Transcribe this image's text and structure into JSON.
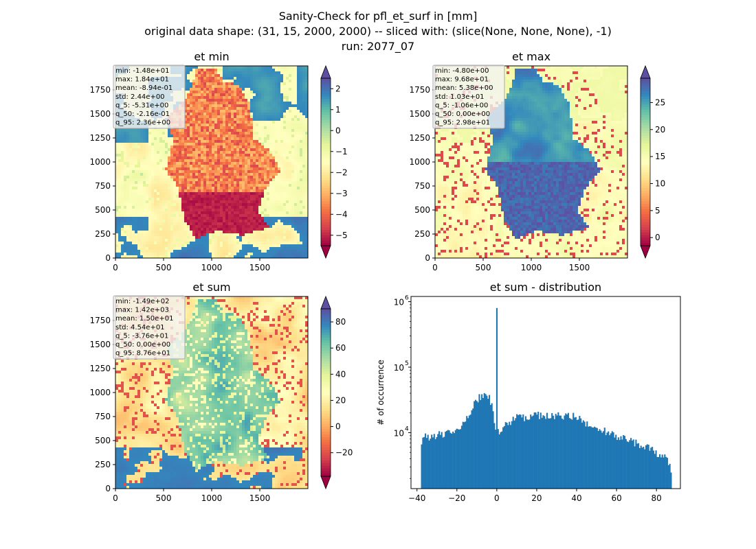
{
  "figure": {
    "title_lines": [
      "Sanity-Check for pfl_et_surf in [mm]",
      "original data shape: (31, 15, 2000, 2000) -- sliced with: (slice(None, None, None), -1)",
      "run: 2077_07"
    ]
  },
  "chart_data": [
    {
      "type": "heatmap",
      "title": "et min",
      "xlim": [
        0,
        2000
      ],
      "ylim": [
        0,
        2000
      ],
      "xticks": [
        "0",
        "500",
        "1000",
        "1500"
      ],
      "yticks": [
        "0",
        "250",
        "500",
        "750",
        "1000",
        "1250",
        "1500",
        "1750"
      ],
      "colormap": "Spectral",
      "colorbar": {
        "range": [
          -5.5,
          2.5
        ],
        "extend": "both",
        "ticks": [
          -5,
          -4,
          -3,
          -2,
          -1,
          0,
          1,
          2
        ],
        "tick_labels": [
          "−5",
          "−4",
          "−3",
          "−2",
          "−1",
          "0",
          "1",
          "2"
        ]
      },
      "stats": [
        "min: -1.48e+01",
        "max: 1.84e+01",
        "mean: -8.94e-01",
        "std: 2.44e+00",
        "q_5: -5.31e+00",
        "q_50: -2.16e-01",
        "q_95: 2.36e+00"
      ]
    },
    {
      "type": "heatmap",
      "title": "et max",
      "xlim": [
        0,
        2000
      ],
      "ylim": [
        0,
        2000
      ],
      "xticks": [
        "0",
        "500",
        "1000",
        "1500"
      ],
      "yticks": [
        "0",
        "250",
        "500",
        "750",
        "1000",
        "1250",
        "1500",
        "1750"
      ],
      "colormap": "Spectral",
      "colorbar": {
        "range": [
          -1.5,
          29.5
        ],
        "extend": "both",
        "ticks": [
          0,
          5,
          10,
          15,
          20,
          25
        ],
        "tick_labels": [
          "0",
          "5",
          "10",
          "15",
          "20",
          "25"
        ]
      },
      "stats": [
        "min: -4.80e+00",
        "max: 9.68e+01",
        "mean: 5.38e+00",
        "std: 1.03e+01",
        "q_5: -1.06e+00",
        "q_50: 0.00e+00",
        "q_95: 2.98e+01"
      ]
    },
    {
      "type": "heatmap",
      "title": "et sum",
      "xlim": [
        0,
        2000
      ],
      "ylim": [
        0,
        2000
      ],
      "xticks": [
        "0",
        "500",
        "1000",
        "1500"
      ],
      "yticks": [
        "0",
        "250",
        "500",
        "750",
        "1000",
        "1250",
        "1500",
        "1750"
      ],
      "colormap": "Spectral",
      "colorbar": {
        "range": [
          -38,
          90
        ],
        "extend": "both",
        "ticks": [
          -20,
          0,
          20,
          40,
          60,
          80
        ],
        "tick_labels": [
          "−20",
          "0",
          "20",
          "40",
          "60",
          "80"
        ]
      },
      "stats": [
        "min: -1.49e+02",
        "max: 1.42e+03",
        "mean: 1.50e+01",
        "std: 4.54e+01",
        "q_5: -3.76e+01",
        "q_50: 0.00e+00",
        "q_95: 8.76e+01"
      ]
    },
    {
      "type": "bar",
      "title": "et sum - distribution",
      "ylabel": "# of occurrence",
      "yscale": "log",
      "xlim": [
        -43,
        92
      ],
      "ylim": [
        1400,
        1200000
      ],
      "xticks": [
        -40,
        -20,
        0,
        20,
        40,
        60,
        80
      ],
      "xtick_labels": [
        "−40",
        "−20",
        "0",
        "20",
        "40",
        "60",
        "80"
      ],
      "color": "#1f77b4",
      "bins": {
        "start": -38,
        "end": 87.6,
        "count": 200
      },
      "spike": {
        "x": 0,
        "value": 800000
      },
      "profile_points": [
        [
          -38,
          6500
        ],
        [
          -36,
          9000
        ],
        [
          -33,
          8500
        ],
        [
          -30,
          9500
        ],
        [
          -27,
          9000
        ],
        [
          -24,
          9800
        ],
        [
          -21,
          10500
        ],
        [
          -18,
          12000
        ],
        [
          -15,
          16000
        ],
        [
          -12,
          26000
        ],
        [
          -9,
          34000
        ],
        [
          -6,
          40000
        ],
        [
          -4,
          37000
        ],
        [
          -2,
          22000
        ],
        [
          -1,
          11000
        ],
        [
          0.5,
          10000
        ],
        [
          3,
          12000
        ],
        [
          6,
          14500
        ],
        [
          10,
          17000
        ],
        [
          15,
          17500
        ],
        [
          20,
          18500
        ],
        [
          25,
          18500
        ],
        [
          30,
          18000
        ],
        [
          35,
          18000
        ],
        [
          40,
          17500
        ],
        [
          45,
          14000
        ],
        [
          50,
          12000
        ],
        [
          55,
          10500
        ],
        [
          60,
          9000
        ],
        [
          65,
          8000
        ],
        [
          70,
          7000
        ],
        [
          75,
          6000
        ],
        [
          80,
          5000
        ],
        [
          84,
          4200
        ],
        [
          86,
          3500
        ],
        [
          87.6,
          2700
        ]
      ],
      "log_ticks": [
        10000,
        100000,
        1000000
      ]
    }
  ]
}
